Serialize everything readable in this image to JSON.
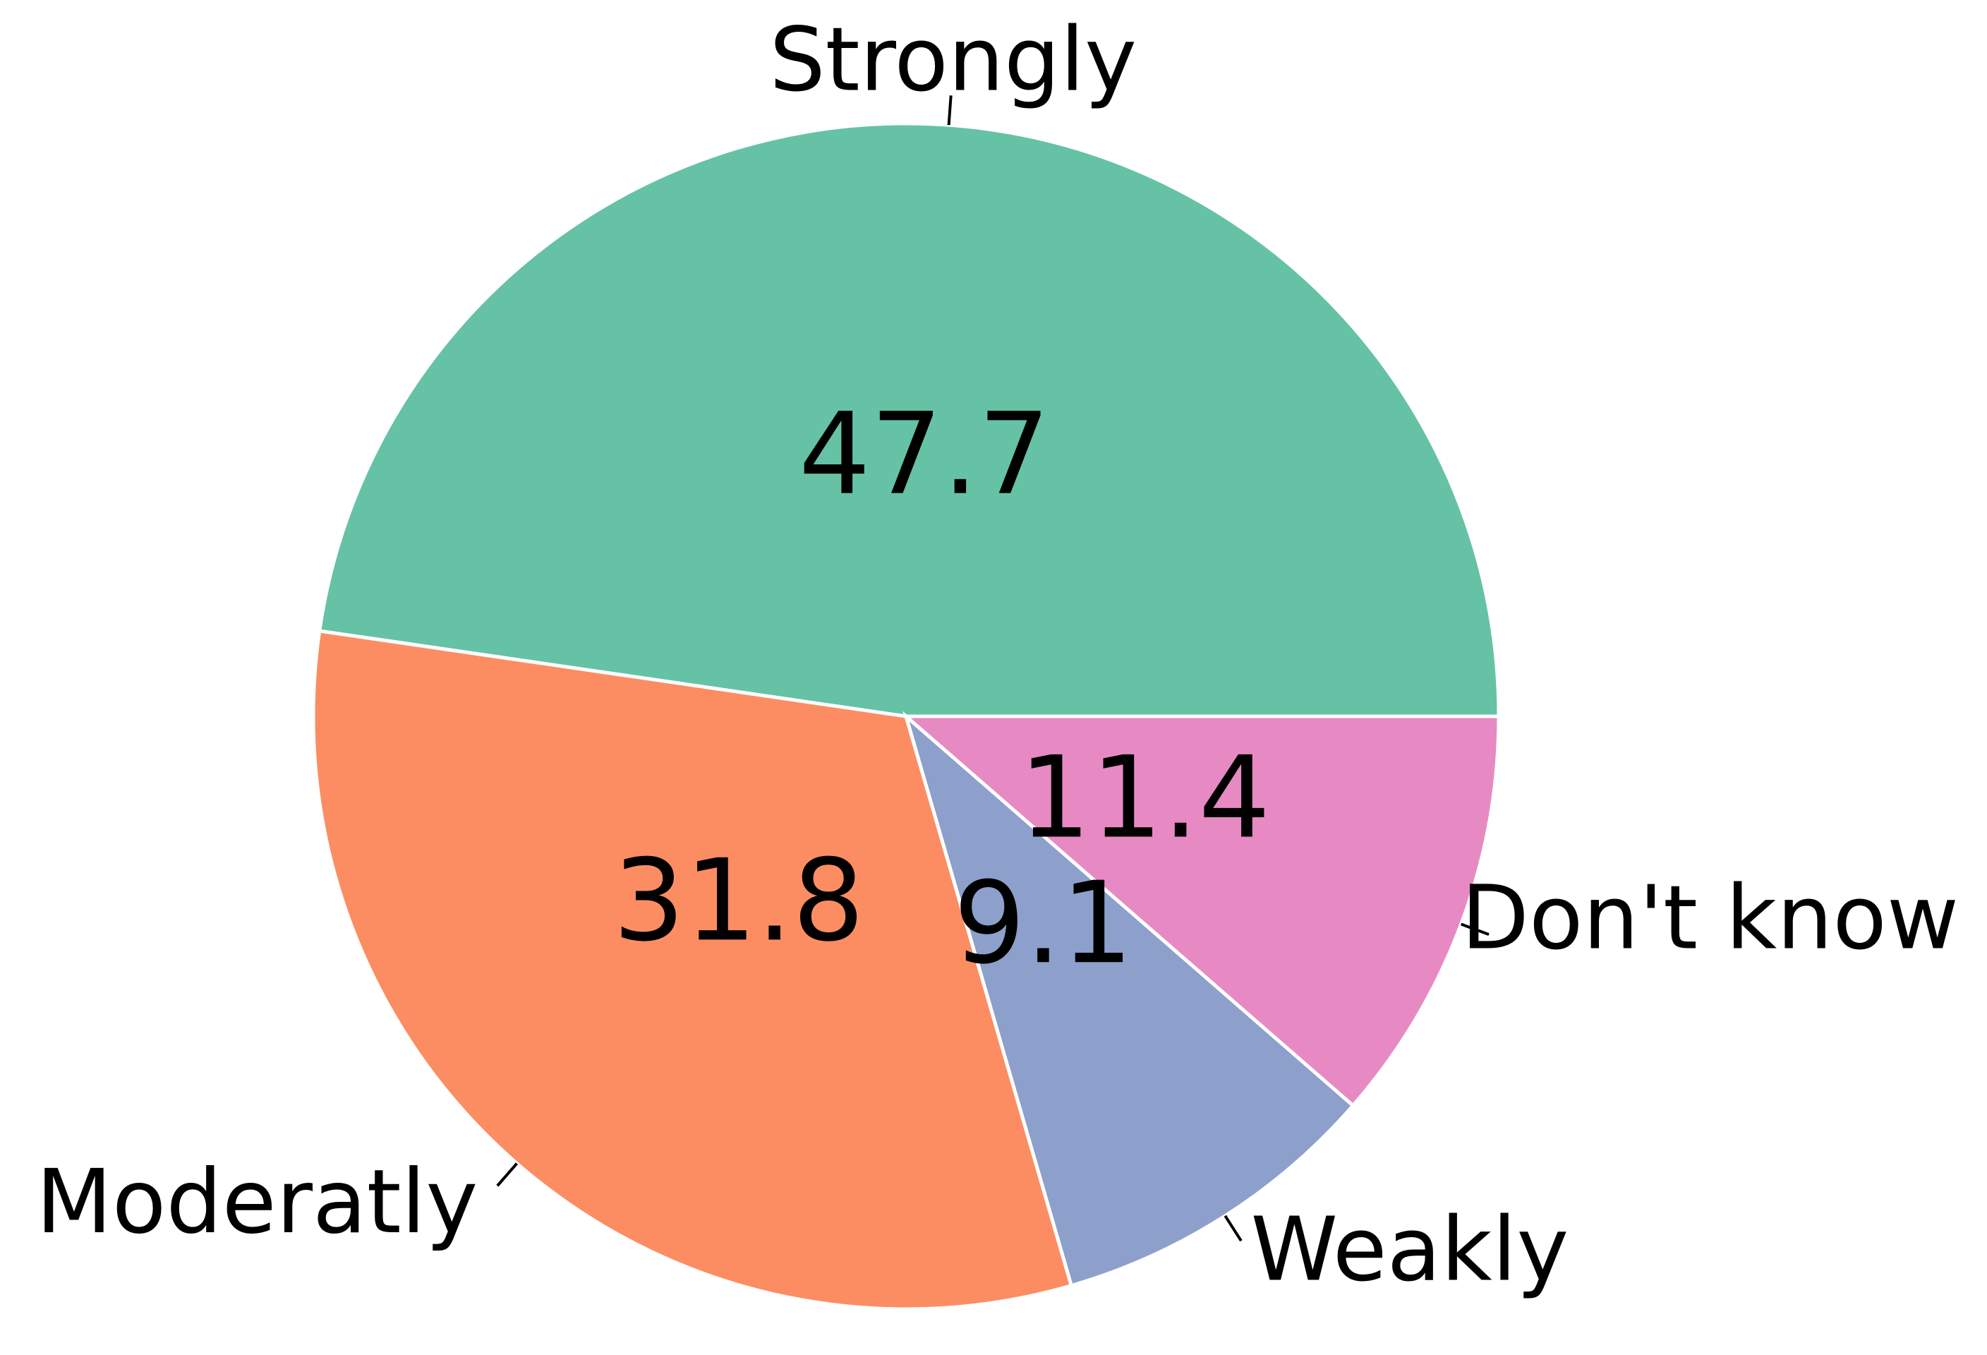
{
  "chart_data": {
    "type": "pie",
    "categories": [
      "Strongly",
      "Moderatly",
      "Weakly",
      "Don't know"
    ],
    "values": [
      47.7,
      31.8,
      9.1,
      11.4
    ],
    "colors": [
      "#66c2a5",
      "#fc8d62",
      "#8da0cb",
      "#e78ac3"
    ]
  }
}
